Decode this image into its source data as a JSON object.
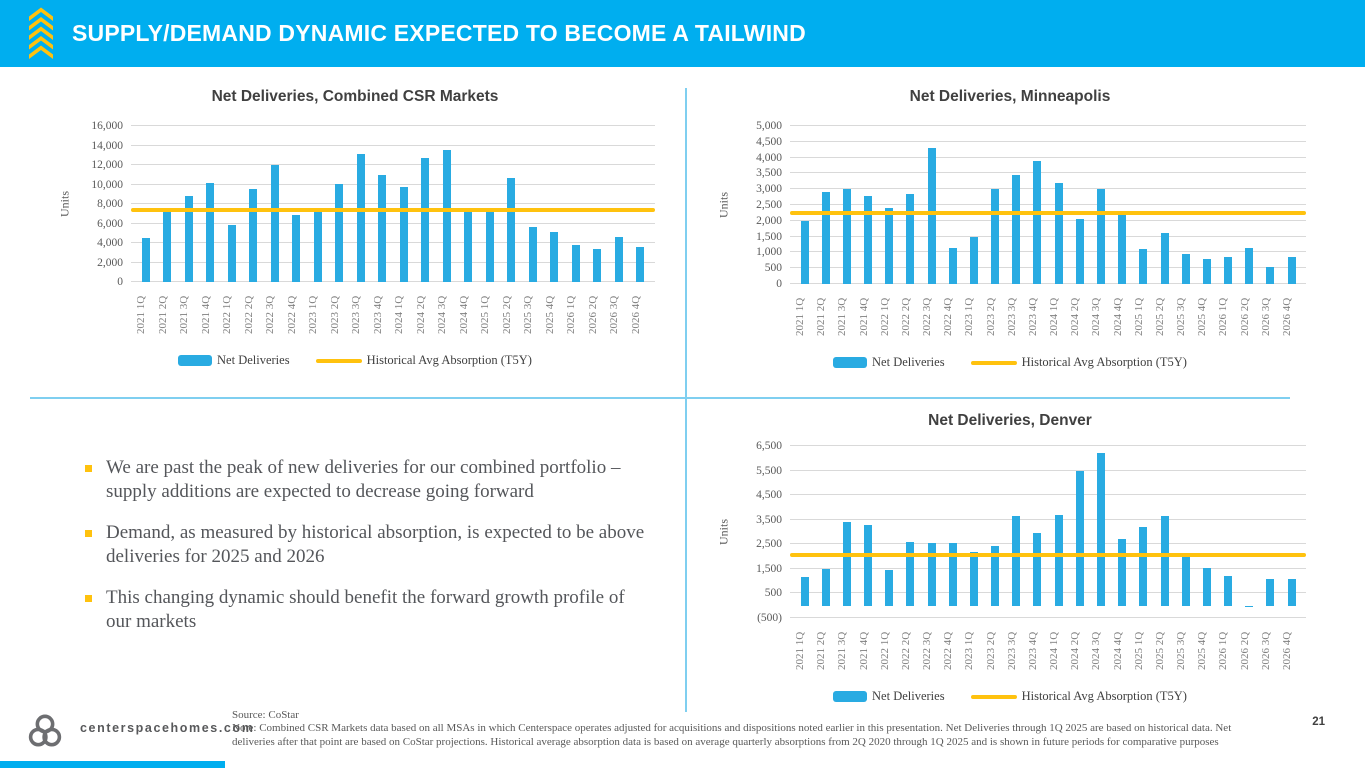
{
  "header": {
    "title": "SUPPLY/DEMAND DYNAMIC EXPECTED TO BECOME A TAILWIND"
  },
  "chart_data": [
    {
      "type": "bar",
      "title": "Net Deliveries, Combined CSR Markets",
      "ylabel": "Units",
      "ylim": [
        0,
        16000
      ],
      "ytick_step": 2000,
      "grid": true,
      "legend_position": "bottom",
      "categories": [
        "2021 1Q",
        "2021 2Q",
        "2021 3Q",
        "2021 4Q",
        "2022 1Q",
        "2022 2Q",
        "2022 3Q",
        "2022 4Q",
        "2023 1Q",
        "2023 2Q",
        "2023 3Q",
        "2023 4Q",
        "2024 1Q",
        "2024 2Q",
        "2024 3Q",
        "2024 4Q",
        "2025 1Q",
        "2025 2Q",
        "2025 3Q",
        "2025 4Q",
        "2026 1Q",
        "2026 2Q",
        "2026 3Q",
        "2026 4Q"
      ],
      "series": [
        {
          "name": "Net Deliveries",
          "values": [
            4500,
            7600,
            8800,
            10200,
            5800,
            9500,
            12000,
            6900,
            7200,
            10100,
            13100,
            11000,
            9700,
            12700,
            13500,
            7200,
            7200,
            10700,
            5600,
            5100,
            3800,
            3400,
            4600,
            3600
          ]
        }
      ],
      "avg_line": {
        "name": "Historical Avg Absorption (T5Y)",
        "value": 7400
      }
    },
    {
      "type": "bar",
      "title": "Net Deliveries, Minneapolis",
      "ylabel": "Units",
      "ylim": [
        0,
        5000
      ],
      "ytick_step": 500,
      "grid": true,
      "legend_position": "bottom",
      "categories": [
        "2021 1Q",
        "2021 2Q",
        "2021 3Q",
        "2021 4Q",
        "2022 1Q",
        "2022 2Q",
        "2022 3Q",
        "2022 4Q",
        "2023 1Q",
        "2023 2Q",
        "2023 3Q",
        "2023 4Q",
        "2024 1Q",
        "2024 2Q",
        "2024 3Q",
        "2024 4Q",
        "2025 1Q",
        "2025 2Q",
        "2025 3Q",
        "2025 4Q",
        "2026 1Q",
        "2026 2Q",
        "2026 3Q",
        "2026 4Q"
      ],
      "series": [
        {
          "name": "Net Deliveries",
          "values": [
            2000,
            2900,
            3000,
            2800,
            2400,
            2850,
            4300,
            1150,
            1500,
            3000,
            3450,
            3900,
            3200,
            2050,
            3000,
            2200,
            1100,
            1600,
            950,
            800,
            850,
            1150,
            550,
            850
          ]
        }
      ],
      "avg_line": {
        "name": "Historical Avg Absorption (T5Y)",
        "value": 2250
      }
    },
    {
      "type": "bar",
      "title": "Net Deliveries, Denver",
      "ylabel": "Units",
      "ylim": [
        -500,
        6500
      ],
      "ytick_step": 1000,
      "grid": true,
      "legend_position": "bottom",
      "categories": [
        "2021 1Q",
        "2021 2Q",
        "2021 3Q",
        "2021 4Q",
        "2022 1Q",
        "2022 2Q",
        "2022 3Q",
        "2022 4Q",
        "2023 1Q",
        "2023 2Q",
        "2023 3Q",
        "2023 4Q",
        "2024 1Q",
        "2024 2Q",
        "2024 3Q",
        "2024 4Q",
        "2025 1Q",
        "2025 2Q",
        "2025 3Q",
        "2025 4Q",
        "2026 1Q",
        "2026 2Q",
        "2026 3Q",
        "2026 4Q"
      ],
      "series": [
        {
          "name": "Net Deliveries",
          "values": [
            1150,
            1500,
            3400,
            3300,
            1450,
            2600,
            2550,
            2550,
            2200,
            2450,
            3650,
            2950,
            3700,
            5500,
            6200,
            2700,
            3200,
            3650,
            2000,
            1550,
            1200,
            -60,
            1080,
            1080
          ]
        }
      ],
      "avg_line": {
        "name": "Historical Avg Absorption (T5Y)",
        "value": 2050
      }
    }
  ],
  "bullets": [
    "We are past the peak of new deliveries for our combined portfolio – supply additions are expected to decrease going forward",
    "Demand, as measured by historical absorption, is expected to be above deliveries for 2025 and 2026",
    "This changing dynamic should benefit the forward growth profile of our markets"
  ],
  "footer": {
    "website": "centerspacehomes.com",
    "source": "Source: CoStar",
    "note": "Note: Combined CSR Markets data based on all MSAs in which Centerspace operates adjusted for acquisitions and dispositions noted earlier in this presentation. Net Deliveries through 1Q 2025 are based on historical data. Net deliveries after that point are based on CoStar projections. Historical average absorption data is based on average quarterly absorptions from 2Q 2020 through 1Q 2025 and is shown in future periods for comparative purposes",
    "page_number": "21"
  },
  "colors": {
    "header_blue": "#00AEEF",
    "bar_blue": "#29ABE2",
    "line_yellow": "#FFC20E",
    "divider_blue": "#7FCFF0",
    "gridline_gray": "#d9d9d9"
  }
}
